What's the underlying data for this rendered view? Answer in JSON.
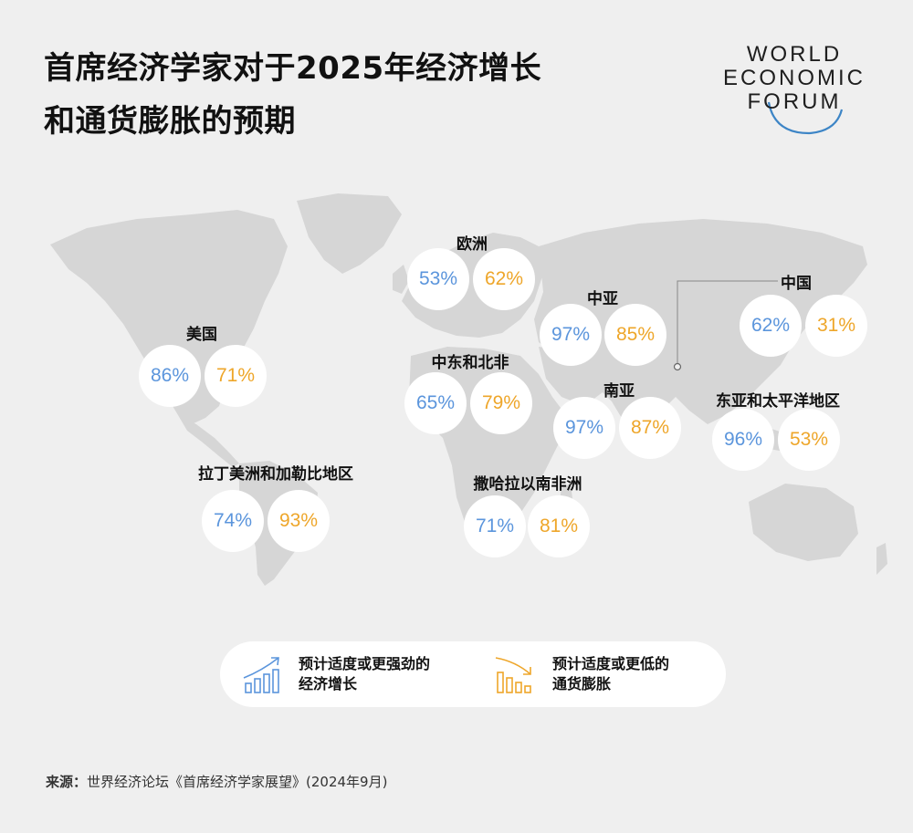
{
  "title": {
    "line1": "首席经济学家对于2025年经济增长",
    "line2": "和通货膨胀的预期"
  },
  "logo": {
    "line1": "WORLD",
    "line2": "ECONOMIC",
    "line3": "FORUM"
  },
  "colors": {
    "growth": "#5b95dc",
    "inflation": "#eea62a",
    "map": "#d6d6d6",
    "background": "#efefef"
  },
  "chart_data": {
    "type": "table",
    "series": [
      {
        "name": "预计适度或更强劲的经济增长",
        "color": "#5b95dc"
      },
      {
        "name": "预计适度或更低的通货膨胀",
        "color": "#eea62a"
      }
    ],
    "regions": [
      {
        "name": "欧洲",
        "growth": "53%",
        "inflation": "62%"
      },
      {
        "name": "中亚",
        "growth": "97%",
        "inflation": "85%"
      },
      {
        "name": "中国",
        "growth": "62%",
        "inflation": "31%"
      },
      {
        "name": "美国",
        "growth": "86%",
        "inflation": "71%"
      },
      {
        "name": "中东和北非",
        "growth": "65%",
        "inflation": "79%"
      },
      {
        "name": "南亚",
        "growth": "97%",
        "inflation": "87%"
      },
      {
        "name": "东亚和太平洋地区",
        "growth": "96%",
        "inflation": "53%"
      },
      {
        "name": "拉丁美洲和加勒比地区",
        "growth": "74%",
        "inflation": "93%"
      },
      {
        "name": "撒哈拉以南非洲",
        "growth": "71%",
        "inflation": "81%"
      }
    ]
  },
  "legend": {
    "growth_line1": "预计适度或更强劲的",
    "growth_line2": "经济增长",
    "growth_icon": "rising-bar-chart-icon",
    "inflation_line1": "预计适度或更低的",
    "inflation_line2": "通货膨胀",
    "inflation_icon": "falling-bar-chart-icon"
  },
  "source": {
    "label": "来源：",
    "text": "世界经济论坛《首席经济学家展望》(2024年9月)"
  }
}
